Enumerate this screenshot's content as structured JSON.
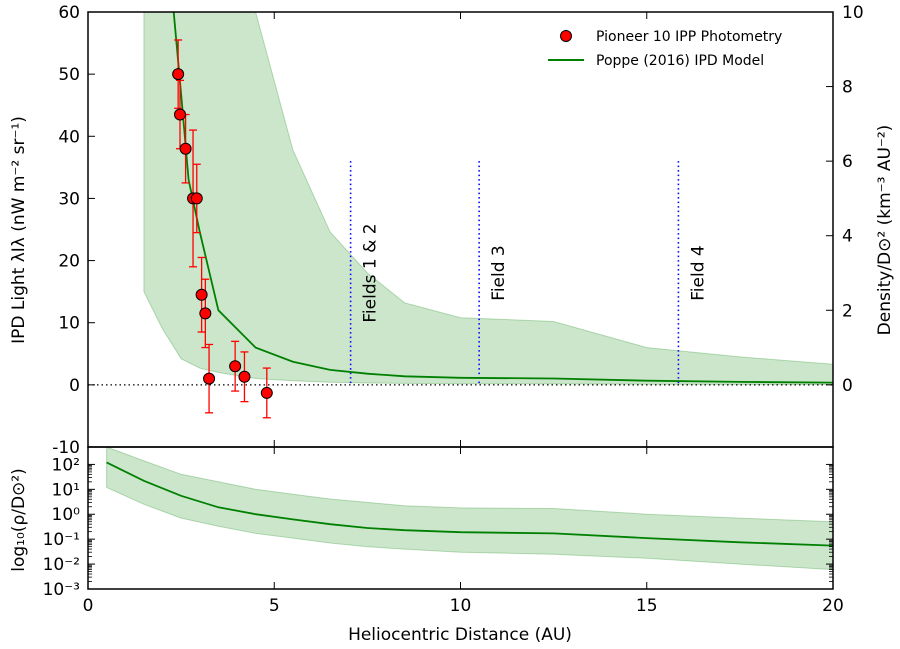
{
  "chart_data": {
    "type": "line",
    "xlabel": "Heliocentric Distance (AU)",
    "xlim": [
      0,
      20
    ],
    "x_ticks": [
      0,
      5,
      10,
      15,
      20
    ],
    "top_panel": {
      "ylabel_left": "IPD Light λIλ (nW m⁻² sr⁻¹)",
      "ylabel_right": "Density/D⊙² (km⁻³ AU⁻²)",
      "ylim_left": [
        -10,
        60
      ],
      "y_ticks_left": [
        -10,
        0,
        10,
        20,
        30,
        40,
        50,
        60
      ],
      "ylim_right": [
        -1.667,
        10
      ],
      "y_ticks_right": [
        0,
        2,
        4,
        6,
        8,
        10
      ],
      "zero_line": true,
      "series": [
        {
          "name": "Pioneer 10 IPP Photometry",
          "kind": "points_with_errorbars",
          "color": "#ff0000",
          "x": [
            2.42,
            2.47,
            2.62,
            2.82,
            2.92,
            3.05,
            3.15,
            3.25,
            3.95,
            4.2,
            4.8
          ],
          "y": [
            50,
            43.5,
            38,
            30,
            30,
            14.5,
            11.5,
            1,
            3,
            1.3,
            -1.3
          ],
          "yerr": [
            5.5,
            5.5,
            5.5,
            11,
            5.5,
            6,
            5.5,
            5.5,
            4,
            4,
            4
          ]
        },
        {
          "name": "Poppe (2016) IPD Model",
          "kind": "line",
          "color": "#008000",
          "axis": "right",
          "x": [
            2.3,
            2.5,
            2.7,
            3.0,
            3.5,
            4.5,
            5.5,
            6.5,
            7.5,
            8.5,
            10,
            12.5,
            15,
            17.5,
            20
          ],
          "y": [
            10,
            7.8,
            5.5,
            4.1,
            2.0,
            1.0,
            0.62,
            0.4,
            0.3,
            0.23,
            0.19,
            0.17,
            0.11,
            0.08,
            0.06
          ],
          "band_x": [
            1.5,
            2.0,
            2.5,
            3.0,
            3.5,
            4.5,
            5.5,
            6.5,
            7.5,
            8.5,
            10,
            12.5,
            15,
            17.5,
            20
          ],
          "band_low": [
            2.5,
            1.5,
            0.7,
            0.45,
            0.33,
            0.17,
            0.11,
            0.07,
            0.05,
            0.04,
            0.03,
            0.025,
            0.017,
            0.012,
            0.01
          ],
          "band_high": [
            10,
            10,
            10,
            10,
            10,
            10,
            6.3,
            4.1,
            3.0,
            2.2,
            1.8,
            1.7,
            1.0,
            0.75,
            0.55
          ]
        }
      ],
      "field_markers": [
        {
          "x": 7.05,
          "label": "Fields 1 & 2"
        },
        {
          "x": 10.5,
          "label": "Field 3"
        },
        {
          "x": 15.85,
          "label": "Field 4"
        }
      ],
      "field_marker_top": 6.0,
      "field_marker_bottom": 0.0,
      "legend": [
        "Pioneer 10 IPP Photometry",
        "Poppe (2016) IPD Model"
      ],
      "legend_position": "top-right"
    },
    "bottom_panel": {
      "ylabel": "log₁₀(ρ/D⊙²)",
      "yscale": "log",
      "ylim": [
        0.001,
        500
      ],
      "y_ticks": [
        "10⁻³",
        "10⁻²",
        "10⁻¹",
        "10⁰",
        "10¹",
        "10²"
      ],
      "y_tick_values": [
        0.001,
        0.01,
        0.1,
        1,
        10,
        100
      ],
      "x": [
        0.5,
        1.5,
        2.5,
        3.5,
        4.5,
        5.5,
        6.5,
        7.5,
        8.5,
        10,
        12.5,
        15,
        17.5,
        20
      ],
      "y": [
        120,
        22,
        5.5,
        1.9,
        1.0,
        0.62,
        0.4,
        0.28,
        0.23,
        0.19,
        0.17,
        0.11,
        0.075,
        0.055
      ],
      "band_low": [
        12,
        2.5,
        0.7,
        0.33,
        0.17,
        0.11,
        0.07,
        0.05,
        0.04,
        0.03,
        0.025,
        0.017,
        0.01,
        0.006
      ],
      "band_high": [
        500,
        140,
        40,
        20,
        10,
        6.3,
        4.1,
        3.0,
        2.2,
        1.8,
        1.7,
        1.0,
        0.7,
        0.5
      ]
    }
  }
}
